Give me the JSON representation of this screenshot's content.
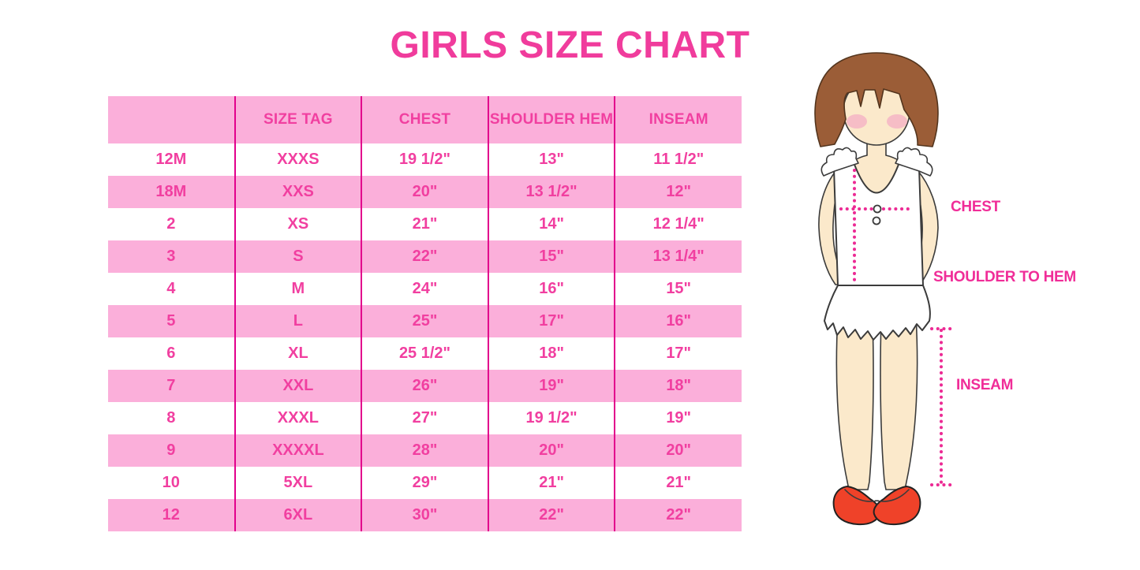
{
  "title": "GIRLS SIZE CHART",
  "chart_data": {
    "type": "table",
    "columns": [
      "",
      "SIZE TAG",
      "CHEST",
      "SHOULDER HEM",
      "INSEAM"
    ],
    "rows": [
      [
        "12M",
        "XXXS",
        "19 1/2\"",
        "13\"",
        "11 1/2\""
      ],
      [
        "18M",
        "XXS",
        "20\"",
        "13 1/2\"",
        "12\""
      ],
      [
        "2",
        "XS",
        "21\"",
        "14\"",
        "12 1/4\""
      ],
      [
        "3",
        "S",
        "22\"",
        "15\"",
        "13 1/4\""
      ],
      [
        "4",
        "M",
        "24\"",
        "16\"",
        "15\""
      ],
      [
        "5",
        "L",
        "25\"",
        "17\"",
        "16\""
      ],
      [
        "6",
        "XL",
        "25 1/2\"",
        "18\"",
        "17\""
      ],
      [
        "7",
        "XXL",
        "26\"",
        "19\"",
        "18\""
      ],
      [
        "8",
        "XXXL",
        "27\"",
        "19 1/2\"",
        "19\""
      ],
      [
        "9",
        "XXXXL",
        "28\"",
        "20\"",
        "20\""
      ],
      [
        "10",
        "5XL",
        "29\"",
        "21\"",
        "21\""
      ],
      [
        "12",
        "6XL",
        "30\"",
        "22\"",
        "22\""
      ]
    ],
    "row_striping": "white/pink alternating, header pink",
    "grid": "vertical column dividers only"
  },
  "diagram": {
    "chest_label": "CHEST",
    "shoulder_to_hem_label": "SHOULDER TO HEM",
    "inseam_label": "INSEAM"
  },
  "colors": {
    "title_pink": "#F03C9C",
    "text_pink": "#F13FA0",
    "row_pink": "#FBAFDA",
    "divider_pink": "#E2008C",
    "label_pink": "#F02D98",
    "dotted_pink": "#EC2A94",
    "hair_brown": "#9B5D37",
    "skin": "#FBE9CB",
    "blush": "#F5B5C6",
    "shoe_red": "#EF4229"
  }
}
